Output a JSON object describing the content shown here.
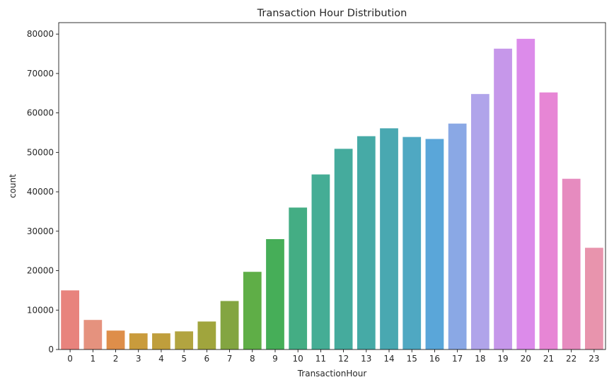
{
  "chart_data": {
    "type": "bar",
    "title": "Transaction Hour Distribution",
    "xlabel": "TransactionHour",
    "ylabel": "count",
    "categories": [
      "0",
      "1",
      "2",
      "3",
      "4",
      "5",
      "6",
      "7",
      "8",
      "9",
      "10",
      "11",
      "12",
      "13",
      "14",
      "15",
      "16",
      "17",
      "18",
      "19",
      "20",
      "21",
      "22",
      "23"
    ],
    "values": [
      15000,
      7500,
      4800,
      4100,
      4100,
      4600,
      7100,
      12300,
      19700,
      28000,
      36000,
      44400,
      50900,
      54100,
      56100,
      53900,
      53400,
      57300,
      64800,
      76300,
      78800,
      65200,
      43300,
      25800
    ],
    "colors": [
      "#e8837d",
      "#e5927e",
      "#de8e4a",
      "#c99b3c",
      "#bf9e3c",
      "#b2a440",
      "#a0a53d",
      "#83a541",
      "#5fae47",
      "#46ae58",
      "#44ad84",
      "#45ad95",
      "#45ab9d",
      "#46aaa6",
      "#49a8b1",
      "#4fa8c2",
      "#5aa6d9",
      "#8aa8e5",
      "#b0a4ea",
      "#c697ea",
      "#dc8bea",
      "#e786d5",
      "#e68bbf",
      "#e894ad"
    ],
    "yticks": [
      0,
      10000,
      20000,
      30000,
      40000,
      50000,
      60000,
      70000,
      80000
    ],
    "ylim": [
      0,
      82900
    ],
    "grid": false
  }
}
